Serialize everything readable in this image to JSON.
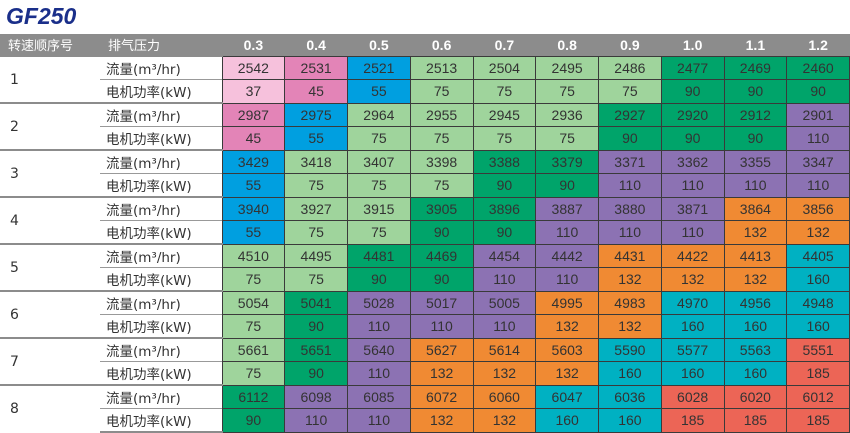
{
  "title": "GF250",
  "headers": {
    "speed_no": "转速顺序号",
    "pressure": "排气压力"
  },
  "pressures": [
    "0.3",
    "0.4",
    "0.5",
    "0.6",
    "0.7",
    "0.8",
    "0.9",
    "1.0",
    "1.1",
    "1.2"
  ],
  "row_labels": {
    "flow": "流量(m³/hr)",
    "power": "电机功率(kW)"
  },
  "power_colors": {
    "37": "#f6c1dc",
    "45": "#e384b7",
    "55": "#009fe0",
    "75": "#9fd49c",
    "90": "#00a46a",
    "110": "#8c72b3",
    "132": "#f08a33",
    "160": "#00b1c2",
    "185": "#ec6556"
  },
  "groups": [
    {
      "no": "1",
      "flow": [
        "2542",
        "2531",
        "2521",
        "2513",
        "2504",
        "2495",
        "2486",
        "2477",
        "2469",
        "2460"
      ],
      "power": [
        "37",
        "45",
        "55",
        "75",
        "75",
        "75",
        "75",
        "90",
        "90",
        "90"
      ]
    },
    {
      "no": "2",
      "flow": [
        "2987",
        "2975",
        "2964",
        "2955",
        "2945",
        "2936",
        "2927",
        "2920",
        "2912",
        "2901"
      ],
      "power": [
        "45",
        "55",
        "75",
        "75",
        "75",
        "75",
        "90",
        "90",
        "90",
        "110"
      ]
    },
    {
      "no": "3",
      "flow": [
        "3429",
        "3418",
        "3407",
        "3398",
        "3388",
        "3379",
        "3371",
        "3362",
        "3355",
        "3347"
      ],
      "power": [
        "55",
        "75",
        "75",
        "75",
        "90",
        "90",
        "110",
        "110",
        "110",
        "110"
      ]
    },
    {
      "no": "4",
      "flow": [
        "3940",
        "3927",
        "3915",
        "3905",
        "3896",
        "3887",
        "3880",
        "3871",
        "3864",
        "3856"
      ],
      "power": [
        "55",
        "75",
        "75",
        "90",
        "90",
        "110",
        "110",
        "110",
        "132",
        "132"
      ]
    },
    {
      "no": "5",
      "flow": [
        "4510",
        "4495",
        "4481",
        "4469",
        "4454",
        "4442",
        "4431",
        "4422",
        "4413",
        "4405"
      ],
      "power": [
        "75",
        "75",
        "90",
        "90",
        "110",
        "110",
        "132",
        "132",
        "132",
        "160"
      ]
    },
    {
      "no": "6",
      "flow": [
        "5054",
        "5041",
        "5028",
        "5017",
        "5005",
        "4995",
        "4983",
        "4970",
        "4956",
        "4948"
      ],
      "power": [
        "75",
        "90",
        "110",
        "110",
        "110",
        "132",
        "132",
        "160",
        "160",
        "160"
      ]
    },
    {
      "no": "7",
      "flow": [
        "5661",
        "5651",
        "5640",
        "5627",
        "5614",
        "5603",
        "5590",
        "5577",
        "5563",
        "5551"
      ],
      "power": [
        "75",
        "90",
        "110",
        "132",
        "132",
        "132",
        "160",
        "160",
        "160",
        "185"
      ]
    },
    {
      "no": "8",
      "flow": [
        "6112",
        "6098",
        "6085",
        "6072",
        "6060",
        "6047",
        "6036",
        "6028",
        "6020",
        "6012"
      ],
      "power": [
        "90",
        "110",
        "110",
        "132",
        "132",
        "160",
        "160",
        "185",
        "185",
        "185"
      ]
    }
  ]
}
